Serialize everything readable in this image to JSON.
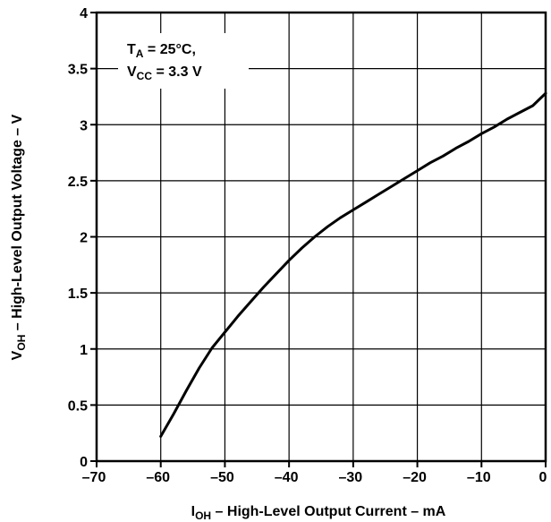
{
  "chart_data": {
    "type": "line",
    "x_axis": {
      "label_main": "I",
      "label_sub": "OH",
      "label_rest": " – High-Level Output Current – mA",
      "min": -70,
      "max": 0,
      "ticks": [
        -70,
        -60,
        -50,
        -40,
        -30,
        -20,
        -10,
        0
      ],
      "tick_labels": [
        "–70",
        "–60",
        "–50",
        "–40",
        "–30",
        "–20",
        "–10",
        "0"
      ]
    },
    "y_axis": {
      "label_main": "V",
      "label_sub": "OH",
      "label_rest": " – High-Level Output Voltage – V",
      "min": 0,
      "max": 4,
      "ticks": [
        0,
        0.5,
        1,
        1.5,
        2,
        2.5,
        3,
        3.5,
        4
      ],
      "tick_labels": [
        "0",
        "0.5",
        "1",
        "1.5",
        "2",
        "2.5",
        "3",
        "3.5",
        "4"
      ]
    },
    "grid": true,
    "annotation": {
      "line1_main": "T",
      "line1_sub": "A",
      "line1_rest": " = 25°C,",
      "line2_main": "V",
      "line2_sub": "CC",
      "line2_rest": " = 3.3 V"
    },
    "series": [
      {
        "x": [
          -60,
          -58,
          -56,
          -54,
          -52,
          -50,
          -48,
          -46,
          -44,
          -42,
          -40,
          -38,
          -36,
          -34,
          -32,
          -30,
          -28,
          -26,
          -24,
          -22,
          -20,
          -18,
          -16,
          -14,
          -12,
          -10,
          -8,
          -6,
          -4,
          -2,
          0
        ],
        "y": [
          0.22,
          0.42,
          0.63,
          0.83,
          1.01,
          1.15,
          1.29,
          1.42,
          1.55,
          1.67,
          1.79,
          1.9,
          2.0,
          2.09,
          2.17,
          2.24,
          2.31,
          2.38,
          2.45,
          2.52,
          2.59,
          2.66,
          2.72,
          2.79,
          2.85,
          2.92,
          2.98,
          3.05,
          3.11,
          3.17,
          3.28
        ]
      }
    ]
  }
}
